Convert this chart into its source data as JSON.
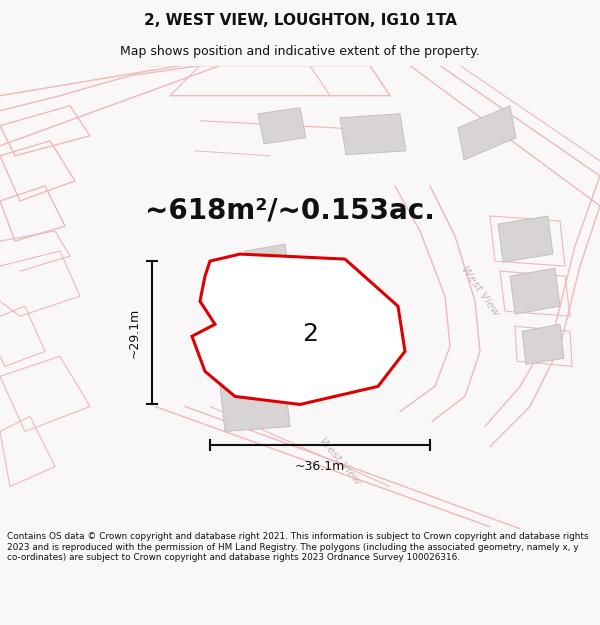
{
  "title": "2, WEST VIEW, LOUGHTON, IG10 1TA",
  "subtitle": "Map shows position and indicative extent of the property.",
  "area_label": "~618m²/~0.153ac.",
  "plot_number": "2",
  "dim_width": "~36.1m",
  "dim_height": "~29.1m",
  "footer": "Contains OS data © Crown copyright and database right 2021. This information is subject to Crown copyright and database rights 2023 and is reproduced with the permission of HM Land Registry. The polygons (including the associated geometry, namely x, y co-ordinates) are subject to Crown copyright and database rights 2023 Ordnance Survey 100026316.",
  "bg_color": "#f9f7f7",
  "map_bg": "#f9f6f6",
  "road_line_color": "#f0b8b8",
  "building_fill": "#d8d4d4",
  "building_edge": "#c0bcbc",
  "plot_edge": "#dd0000",
  "plot_fill": "#ffffff",
  "dim_color": "#111111",
  "street_color": "#c8b8b8",
  "street_label_right": "West View",
  "street_label_lower": "West View",
  "title_fontsize": 11,
  "subtitle_fontsize": 9,
  "area_fontsize": 20,
  "plot_num_fontsize": 18,
  "dim_fontsize": 9,
  "street_fontsize": 8,
  "footer_fontsize": 6.4
}
